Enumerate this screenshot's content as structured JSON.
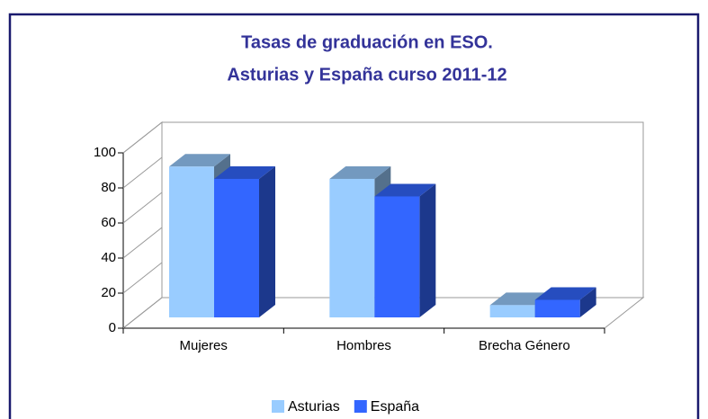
{
  "chart_data": {
    "type": "bar3d",
    "title": [
      "Tasas de graduación en ESO.",
      "Asturias y España curso 2011-12"
    ],
    "categories": [
      "Mujeres",
      "Hombres",
      "Brecha Género"
    ],
    "series": [
      {
        "name": "Asturias",
        "color": "#99ccff",
        "values": [
          86,
          79,
          7
        ]
      },
      {
        "name": "España",
        "color": "#3366ff",
        "values": [
          79,
          69,
          10
        ]
      }
    ],
    "ylim": [
      0,
      100
    ],
    "yticks": [
      0,
      20,
      40,
      60,
      80,
      100
    ],
    "legend": "bottom"
  }
}
